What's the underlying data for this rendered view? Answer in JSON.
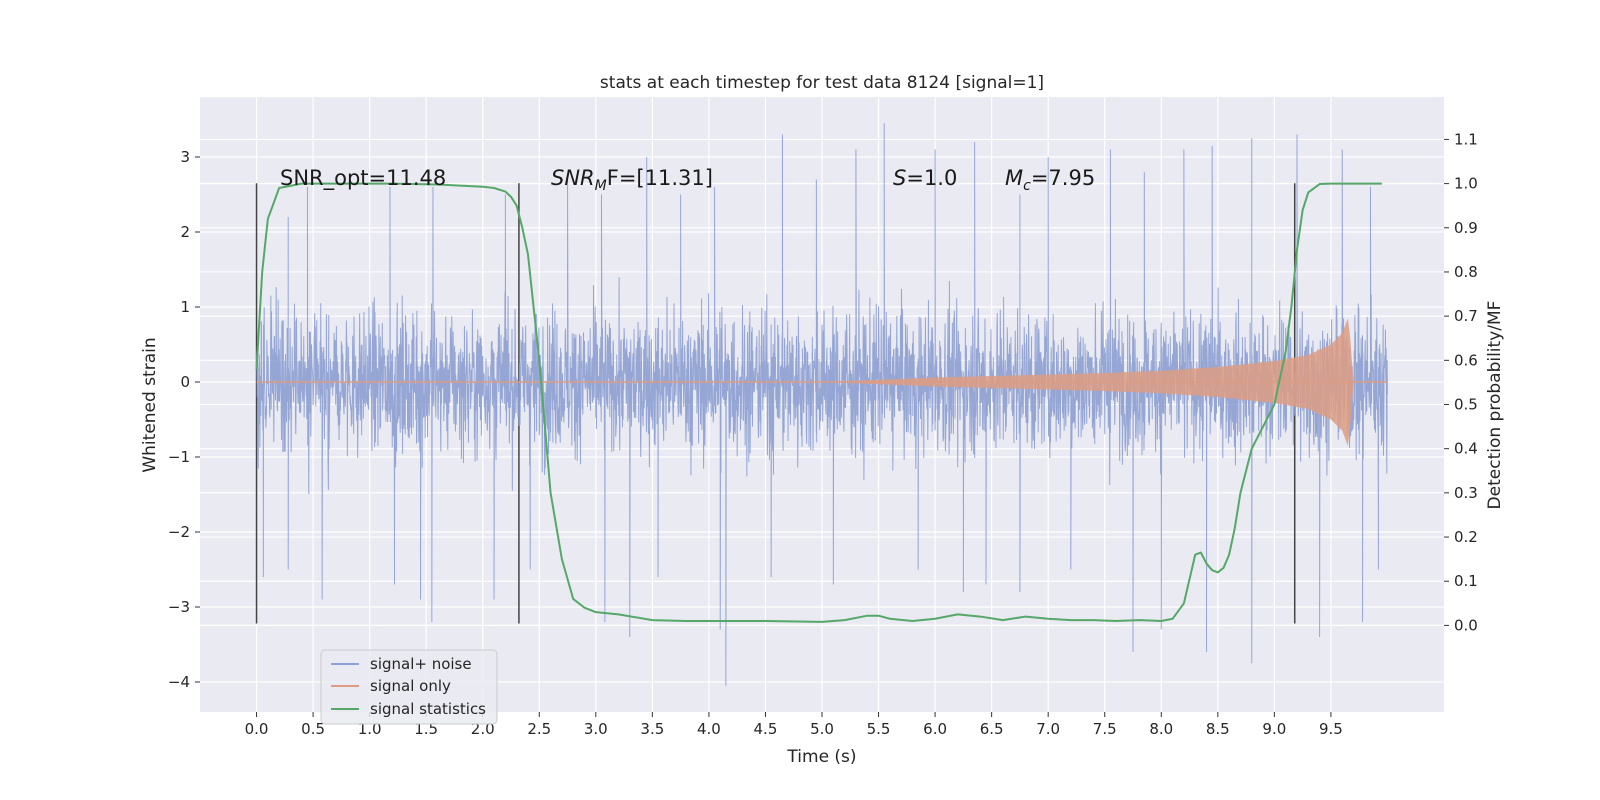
{
  "chart_data": {
    "type": "line",
    "title": "stats at each timestep for test data 8124 [signal=1]",
    "xlabel": "Time (s)",
    "ylabel": "Whitened strain",
    "y2label": "Detection probability/MF",
    "xlim": [
      -0.5,
      10.5
    ],
    "ylim": [
      -4.4,
      3.8
    ],
    "y2lim": [
      -0.196,
      1.196
    ],
    "x_ticks": [
      "0.0",
      "0.5",
      "1.0",
      "1.5",
      "2.0",
      "2.5",
      "3.0",
      "3.5",
      "4.0",
      "4.5",
      "5.0",
      "5.5",
      "6.0",
      "6.5",
      "7.0",
      "7.5",
      "8.0",
      "8.5",
      "9.0",
      "9.5"
    ],
    "y_ticks": [
      "3",
      "2",
      "1",
      "0",
      "−1",
      "−2",
      "−3",
      "−4"
    ],
    "y2_ticks": [
      "1.1",
      "1.0",
      "0.9",
      "0.8",
      "0.7",
      "0.6",
      "0.5",
      "0.4",
      "0.3",
      "0.2",
      "0.1",
      "0.0"
    ],
    "grid": true,
    "legend_position": "lower-left",
    "annotations": {
      "snr_opt": "SNR_opt=11.48",
      "snr_mf_main": "SNR",
      "snr_mf_sub": "M",
      "snr_mf_rest": "F=[11.31]",
      "s_main": "S",
      "s_rest": "=1.0",
      "mc_main": "M",
      "mc_sub": "c",
      "mc_rest": "=7.95"
    },
    "vertical_markers": [
      {
        "x": 0.0,
        "ymin": -3.22,
        "ymax": 2.65
      },
      {
        "x": 2.32,
        "ymin": -3.22,
        "ymax": 2.65
      },
      {
        "x": 9.18,
        "ymin": -3.22,
        "ymax": 2.65
      }
    ],
    "series": [
      {
        "name": "signal+ noise",
        "color": "#8c9fd2",
        "kind": "noise",
        "x_range": [
          0.0,
          10.0
        ],
        "typical_range": [
          -1.5,
          1.5
        ],
        "peaks_up": [
          [
            0.28,
            2.2
          ],
          [
            0.45,
            2.6
          ],
          [
            1.18,
            2.6
          ],
          [
            1.56,
            2.6
          ],
          [
            2.2,
            2.5
          ],
          [
            2.75,
            2.7
          ],
          [
            3.05,
            2.5
          ],
          [
            3.45,
            3.0
          ],
          [
            3.75,
            2.5
          ],
          [
            4.05,
            2.6
          ],
          [
            4.65,
            3.3
          ],
          [
            4.95,
            2.7
          ],
          [
            5.3,
            3.1
          ],
          [
            5.55,
            3.45
          ],
          [
            6.0,
            3.1
          ],
          [
            6.35,
            3.2
          ],
          [
            6.75,
            2.5
          ],
          [
            7.0,
            3.0
          ],
          [
            7.55,
            3.1
          ],
          [
            7.85,
            2.8
          ],
          [
            8.2,
            3.1
          ],
          [
            8.45,
            3.15
          ],
          [
            8.8,
            3.25
          ],
          [
            9.2,
            3.3
          ],
          [
            9.6,
            3.1
          ],
          [
            9.85,
            2.6
          ]
        ],
        "peaks_down": [
          [
            0.06,
            -2.6
          ],
          [
            0.28,
            -2.5
          ],
          [
            0.58,
            -2.9
          ],
          [
            1.22,
            -2.7
          ],
          [
            1.45,
            -2.9
          ],
          [
            1.55,
            -3.2
          ],
          [
            2.1,
            -2.9
          ],
          [
            2.42,
            -2.5
          ],
          [
            3.08,
            -3.2
          ],
          [
            3.3,
            -3.4
          ],
          [
            3.55,
            -2.6
          ],
          [
            4.1,
            -3.3
          ],
          [
            4.15,
            -4.05
          ],
          [
            4.55,
            -2.6
          ],
          [
            5.1,
            -2.7
          ],
          [
            5.85,
            -2.5
          ],
          [
            6.25,
            -2.8
          ],
          [
            6.45,
            -2.7
          ],
          [
            6.75,
            -2.8
          ],
          [
            7.2,
            -2.5
          ],
          [
            7.75,
            -3.6
          ],
          [
            8.0,
            -3.3
          ],
          [
            8.4,
            -3.6
          ],
          [
            8.8,
            -3.75
          ],
          [
            9.4,
            -3.4
          ],
          [
            9.78,
            -3.2
          ],
          [
            9.92,
            -2.5
          ]
        ]
      },
      {
        "name": "signal only",
        "color": "#dd9c83",
        "kind": "chirp",
        "x": [
          0.0,
          5.0,
          5.5,
          6.0,
          6.5,
          7.0,
          7.5,
          8.0,
          8.5,
          9.0,
          9.3,
          9.5,
          9.6,
          9.65,
          9.67,
          9.7,
          10.0
        ],
        "envelope": [
          0.0,
          0.0,
          0.03,
          0.06,
          0.08,
          0.1,
          0.12,
          0.15,
          0.2,
          0.28,
          0.36,
          0.5,
          0.65,
          0.85,
          0.6,
          0.0,
          0.0
        ]
      },
      {
        "name": "signal statistics",
        "color": "#55a868",
        "kind": "line",
        "axis": "y2",
        "x": [
          0.0,
          0.05,
          0.1,
          0.2,
          0.4,
          0.8,
          1.2,
          1.6,
          2.0,
          2.1,
          2.2,
          2.25,
          2.3,
          2.35,
          2.4,
          2.5,
          2.6,
          2.7,
          2.8,
          2.9,
          3.0,
          3.2,
          3.5,
          3.8,
          4.0,
          4.5,
          5.0,
          5.2,
          5.4,
          5.5,
          5.6,
          5.8,
          6.0,
          6.2,
          6.4,
          6.6,
          6.8,
          7.0,
          7.2,
          7.4,
          7.6,
          7.8,
          8.0,
          8.1,
          8.2,
          8.3,
          8.35,
          8.4,
          8.45,
          8.5,
          8.55,
          8.6,
          8.65,
          8.7,
          8.8,
          8.9,
          9.0,
          9.1,
          9.15,
          9.2,
          9.25,
          9.3,
          9.4,
          9.5,
          9.6,
          9.7,
          9.8,
          9.95
        ],
        "y": [
          0.58,
          0.8,
          0.92,
          0.99,
          1.0,
          1.0,
          1.0,
          0.998,
          0.993,
          0.99,
          0.982,
          0.97,
          0.95,
          0.9,
          0.84,
          0.6,
          0.3,
          0.15,
          0.06,
          0.04,
          0.03,
          0.025,
          0.012,
          0.01,
          0.01,
          0.01,
          0.008,
          0.012,
          0.022,
          0.022,
          0.015,
          0.01,
          0.015,
          0.025,
          0.02,
          0.012,
          0.02,
          0.015,
          0.012,
          0.012,
          0.01,
          0.012,
          0.01,
          0.015,
          0.05,
          0.16,
          0.165,
          0.14,
          0.125,
          0.12,
          0.13,
          0.16,
          0.22,
          0.3,
          0.4,
          0.45,
          0.5,
          0.62,
          0.72,
          0.85,
          0.94,
          0.98,
          0.999,
          1.0,
          1.0,
          1.0,
          1.0,
          1.0
        ]
      }
    ]
  }
}
